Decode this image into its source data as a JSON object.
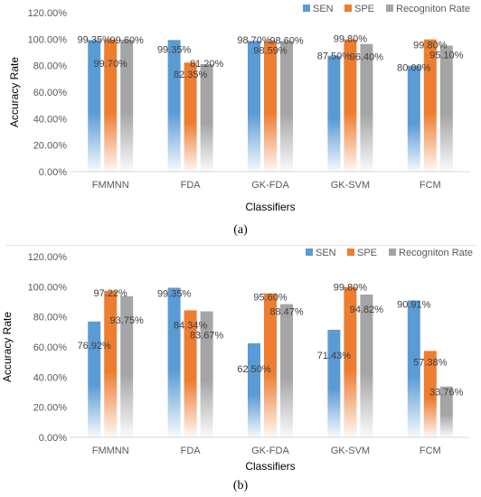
{
  "colors": {
    "SEN": "#5b9bd5",
    "SPE": "#ed7d31",
    "Recogniton Rate": "#a5a5a5",
    "axis_text": "#595959",
    "grid": "#d9d9d9"
  },
  "chart_data": [
    {
      "type": "bar",
      "panel_label": "(a)",
      "categories": [
        "FMMNN",
        "FDA",
        "GK-FDA",
        "GK-SVM",
        "FCM"
      ],
      "xlabel": "Classifiers",
      "ylabel": "Accuracy Rate",
      "ylim": [
        0,
        120
      ],
      "yticks": [
        "0.00%",
        "20.00%",
        "40.00%",
        "60.00%",
        "80.00%",
        "100.00%",
        "120.00%"
      ],
      "grid": false,
      "legend_position": "top-right",
      "series": [
        {
          "name": "SEN",
          "values": [
            99.35,
            99.35,
            98.7,
            87.5,
            80.0
          ],
          "labels": [
            "99.35%",
            "99.35%",
            "98.70%",
            "87.50%",
            "80.00%"
          ]
        },
        {
          "name": "SPE",
          "values": [
            99.7,
            82.35,
            98.59,
            99.8,
            99.8
          ],
          "labels": [
            "99.70%",
            "82.35%",
            "98.59%",
            "99.80%",
            "99.80%"
          ]
        },
        {
          "name": "Recogniton Rate",
          "values": [
            99.6,
            81.2,
            98.6,
            96.4,
            95.1
          ],
          "labels": [
            "99.60%",
            "81.20%",
            "98.60%",
            "96.40%",
            "95.10%"
          ]
        }
      ]
    },
    {
      "type": "bar",
      "panel_label": "(b)",
      "categories": [
        "FMMNN",
        "FDA",
        "GK-FDA",
        "GK-SVM",
        "FCM"
      ],
      "xlabel": "Classifiers",
      "ylabel": "Accuracy Rate",
      "ylim": [
        0,
        120
      ],
      "yticks": [
        "0.00%",
        "20.00%",
        "40.00%",
        "60.00%",
        "80.00%",
        "100.00%",
        "120.00%"
      ],
      "grid": false,
      "legend_position": "top-right",
      "series": [
        {
          "name": "SEN",
          "values": [
            76.92,
            99.35,
            62.5,
            71.43,
            90.91
          ],
          "labels": [
            "76.92%",
            "99.35%",
            "62.50%",
            "71.43%",
            "90.91%"
          ]
        },
        {
          "name": "SPE",
          "values": [
            97.22,
            84.34,
            95.6,
            99.8,
            57.38
          ],
          "labels": [
            "97.22%",
            "84.34%",
            "95.60%",
            "99.80%",
            "57.38%"
          ]
        },
        {
          "name": "Recogniton Rate",
          "values": [
            93.75,
            83.67,
            88.47,
            94.82,
            33.76
          ],
          "labels": [
            "93.75%",
            "83.67%",
            "88.47%",
            "94.82%",
            "33.76%"
          ]
        }
      ]
    }
  ]
}
